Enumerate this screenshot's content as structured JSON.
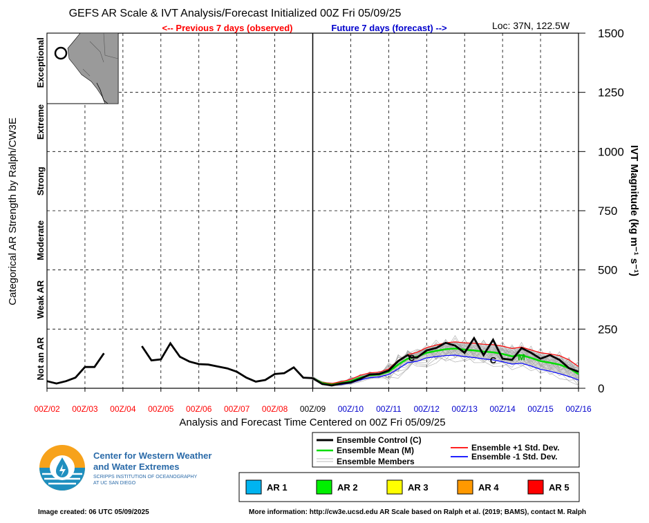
{
  "title": "GEFS AR Scale & IVT Analysis/Forecast Initialized 00Z Fri 05/09/25",
  "previous_label": "<-- Previous 7 days (observed)",
  "future_label": "Future 7 days (forecast) -->",
  "location": "Loc: 37N, 122.5W",
  "left_axis_title": "Categorical AR Strength by Ralph/CW3E",
  "right_axis_title": "IVT Magnitude (kg m⁻¹ s⁻¹)",
  "x_axis_title": "Analysis and Forecast Time Centered on 00Z Fri 05/09/25",
  "legend": {
    "control": "Ensemble Control (C)",
    "mean": "Ensemble Mean (M)",
    "members": "Ensemble Members",
    "plus_std": "Ensemble +1 Std. Dev.",
    "minus_std": "Ensemble -1 Std. Dev."
  },
  "ar_scale": [
    {
      "label": "AR 1",
      "color": "#00b4f0"
    },
    {
      "label": "AR 2",
      "color": "#00f000"
    },
    {
      "label": "AR 3",
      "color": "#ffff00"
    },
    {
      "label": "AR 4",
      "color": "#ff9900"
    },
    {
      "label": "AR 5",
      "color": "#ff0000"
    }
  ],
  "logo": {
    "line1": "Center for Western Weather",
    "line2": "and Water Extremes",
    "sub1": "SCRIPPS INSTITUTION OF OCEANOGRAPHY",
    "sub2": "AT UC SAN DIEGO"
  },
  "footer_left": "Image created: 06 UTC 05/09/2025",
  "footer_right": "More information: http://cw3e.ucsd.edu  AR Scale based on Ralph et al. (2019; BAMS), contact M. Ralph",
  "chart_data": {
    "type": "line",
    "ylim": [
      0,
      1500
    ],
    "xlim_days": [
      -7,
      7
    ],
    "y_ticks": [
      0,
      250,
      500,
      750,
      1000,
      1250,
      1500
    ],
    "x_tick_labels": [
      "00Z/02",
      "00Z/03",
      "00Z/04",
      "00Z/05",
      "00Z/06",
      "00Z/07",
      "00Z/08",
      "00Z/09",
      "00Z/10",
      "00Z/11",
      "00Z/12",
      "00Z/13",
      "00Z/14",
      "00Z/15",
      "00Z/16"
    ],
    "x_tick_colors": [
      "#ff0000",
      "#ff0000",
      "#ff0000",
      "#ff0000",
      "#ff0000",
      "#ff0000",
      "#ff0000",
      "#000000",
      "#0000cc",
      "#0000cc",
      "#0000cc",
      "#0000cc",
      "#0000cc",
      "#0000cc",
      "#0000cc"
    ],
    "categories": [
      {
        "label": "Not an AR",
        "from": 0,
        "to": 250
      },
      {
        "label": "Weak AR",
        "from": 250,
        "to": 500
      },
      {
        "label": "Moderate",
        "from": 500,
        "to": 750
      },
      {
        "label": "Strong",
        "from": 750,
        "to": 1000
      },
      {
        "label": "Extreme",
        "from": 1000,
        "to": 1250
      },
      {
        "label": "Exceptional",
        "from": 1250,
        "to": 1500
      }
    ],
    "control_marker": "C",
    "mean_marker": "M",
    "observed": [
      [
        [
          -7.0,
          30
        ],
        [
          -6.75,
          20
        ],
        [
          -6.5,
          30
        ],
        [
          -6.25,
          45
        ],
        [
          -6.0,
          90
        ],
        [
          -5.75,
          90
        ],
        [
          -5.5,
          148
        ]
      ],
      [
        [
          -4.5,
          178
        ],
        [
          -4.25,
          118
        ],
        [
          -4.0,
          122
        ],
        [
          -3.75,
          190
        ],
        [
          -3.5,
          133
        ],
        [
          -3.25,
          113
        ],
        [
          -3.0,
          102
        ],
        [
          -2.75,
          100
        ],
        [
          -2.5,
          92
        ],
        [
          -2.25,
          84
        ],
        [
          -2.0,
          70
        ],
        [
          -1.75,
          45
        ],
        [
          -1.5,
          28
        ],
        [
          -1.25,
          35
        ],
        [
          -1.0,
          60
        ],
        [
          -0.75,
          64
        ],
        [
          -0.5,
          88
        ],
        [
          -0.25,
          45
        ],
        [
          0.0,
          43
        ]
      ]
    ],
    "control": [
      [
        0.0,
        43
      ],
      [
        0.25,
        18
      ],
      [
        0.5,
        12
      ],
      [
        0.75,
        20
      ],
      [
        1.0,
        25
      ],
      [
        1.25,
        40
      ],
      [
        1.5,
        58
      ],
      [
        1.75,
        60
      ],
      [
        2.0,
        75
      ],
      [
        2.25,
        115
      ],
      [
        2.5,
        140
      ],
      [
        2.6,
        130
      ],
      [
        2.75,
        130
      ],
      [
        3.0,
        160
      ],
      [
        3.25,
        170
      ],
      [
        3.5,
        192
      ],
      [
        3.75,
        180
      ],
      [
        4.0,
        150
      ],
      [
        4.25,
        212
      ],
      [
        4.5,
        140
      ],
      [
        4.75,
        205
      ],
      [
        5.0,
        125
      ],
      [
        5.25,
        120
      ],
      [
        5.5,
        170
      ],
      [
        5.75,
        150
      ],
      [
        6.0,
        125
      ],
      [
        6.25,
        140
      ],
      [
        6.5,
        120
      ],
      [
        6.75,
        85
      ],
      [
        7.0,
        70
      ]
    ],
    "mean": [
      [
        0.0,
        43
      ],
      [
        0.25,
        22
      ],
      [
        0.5,
        15
      ],
      [
        0.75,
        22
      ],
      [
        1.0,
        30
      ],
      [
        1.25,
        45
      ],
      [
        1.5,
        55
      ],
      [
        1.75,
        58
      ],
      [
        2.0,
        70
      ],
      [
        2.25,
        100
      ],
      [
        2.5,
        125
      ],
      [
        2.75,
        133
      ],
      [
        3.0,
        150
      ],
      [
        3.25,
        158
      ],
      [
        3.5,
        165
      ],
      [
        3.75,
        168
      ],
      [
        4.0,
        163
      ],
      [
        4.25,
        160
      ],
      [
        4.5,
        155
      ],
      [
        4.75,
        152
      ],
      [
        5.0,
        145
      ],
      [
        5.25,
        135
      ],
      [
        5.5,
        140
      ],
      [
        5.75,
        128
      ],
      [
        6.0,
        115
      ],
      [
        6.25,
        108
      ],
      [
        6.5,
        100
      ],
      [
        6.75,
        85
      ],
      [
        7.0,
        60
      ]
    ],
    "plus_std": [
      [
        0.0,
        43
      ],
      [
        0.25,
        25
      ],
      [
        0.5,
        20
      ],
      [
        0.75,
        28
      ],
      [
        1.0,
        38
      ],
      [
        1.25,
        55
      ],
      [
        1.5,
        65
      ],
      [
        1.75,
        68
      ],
      [
        2.0,
        82
      ],
      [
        2.25,
        118
      ],
      [
        2.5,
        142
      ],
      [
        2.75,
        152
      ],
      [
        3.0,
        172
      ],
      [
        3.25,
        182
      ],
      [
        3.5,
        192
      ],
      [
        3.75,
        196
      ],
      [
        4.0,
        192
      ],
      [
        4.25,
        190
      ],
      [
        4.5,
        186
      ],
      [
        4.75,
        184
      ],
      [
        5.0,
        178
      ],
      [
        5.25,
        168
      ],
      [
        5.5,
        174
      ],
      [
        5.75,
        162
      ],
      [
        6.0,
        150
      ],
      [
        6.25,
        145
      ],
      [
        6.5,
        138
      ],
      [
        6.75,
        120
      ],
      [
        7.0,
        92
      ]
    ],
    "minus_std": [
      [
        0.0,
        43
      ],
      [
        0.25,
        18
      ],
      [
        0.5,
        12
      ],
      [
        0.75,
        16
      ],
      [
        1.0,
        22
      ],
      [
        1.25,
        35
      ],
      [
        1.5,
        45
      ],
      [
        1.75,
        48
      ],
      [
        2.0,
        58
      ],
      [
        2.25,
        82
      ],
      [
        2.5,
        108
      ],
      [
        2.75,
        114
      ],
      [
        3.0,
        128
      ],
      [
        3.25,
        134
      ],
      [
        3.5,
        138
      ],
      [
        3.75,
        140
      ],
      [
        4.0,
        134
      ],
      [
        4.25,
        130
      ],
      [
        4.5,
        124
      ],
      [
        4.75,
        120
      ],
      [
        5.0,
        112
      ],
      [
        5.25,
        102
      ],
      [
        5.5,
        106
      ],
      [
        5.75,
        94
      ],
      [
        6.0,
        80
      ],
      [
        6.25,
        72
      ],
      [
        6.5,
        62
      ],
      [
        6.75,
        50
      ],
      [
        7.0,
        35
      ]
    ],
    "members_range": {
      "min": 12,
      "max": 290
    }
  }
}
